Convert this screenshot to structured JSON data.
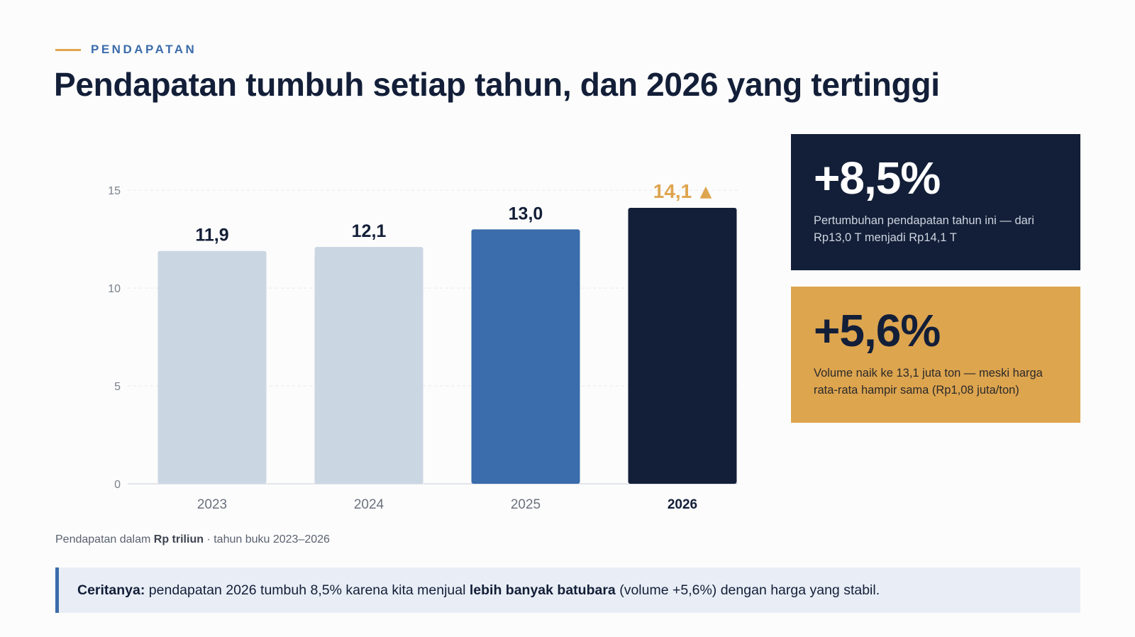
{
  "header": {
    "eyebrow": "PENDAPATAN",
    "title": "Pendapatan tumbuh setiap tahun, dan 2026 yang tertinggi"
  },
  "chart_data": {
    "type": "bar",
    "categories": [
      "2023",
      "2024",
      "2025",
      "2026"
    ],
    "values": [
      11.9,
      12.1,
      13.0,
      14.1
    ],
    "value_labels": [
      "11,9",
      "12,1",
      "13,0",
      "14,1"
    ],
    "highlight_marker": "▲",
    "y_ticks": [
      0,
      5,
      10,
      15
    ],
    "ylim": [
      0,
      17
    ],
    "grid": true,
    "bar_colors": [
      "#cbd6e3",
      "#cbd6e3",
      "#3b6cab",
      "#131f38"
    ],
    "label_colors": [
      "#131f38",
      "#131f38",
      "#131f38",
      "#dea54f"
    ],
    "caption": {
      "prefix": "Pendapatan dalam ",
      "unit": "Rp triliun",
      "suffix": " · tahun buku 2023–2026"
    }
  },
  "kpis": [
    {
      "value": "+8,5%",
      "description": "Pertumbuhan pendapatan tahun ini — dari Rp13,0 T menjadi Rp14,1 T",
      "color": "#131f38"
    },
    {
      "value": "+5,6%",
      "description": "Volume naik ke 13,1 juta ton — meski harga rata-rata hampir sama (Rp1,08 juta/ton)",
      "color": "#dea54f"
    }
  ],
  "story": {
    "lead": "Ceritanya:",
    "part1": " pendapatan 2026 tumbuh 8,5% karena kita menjual ",
    "bold": "lebih banyak batubara",
    "part2": " (volume +5,6%) dengan harga yang stabil."
  }
}
